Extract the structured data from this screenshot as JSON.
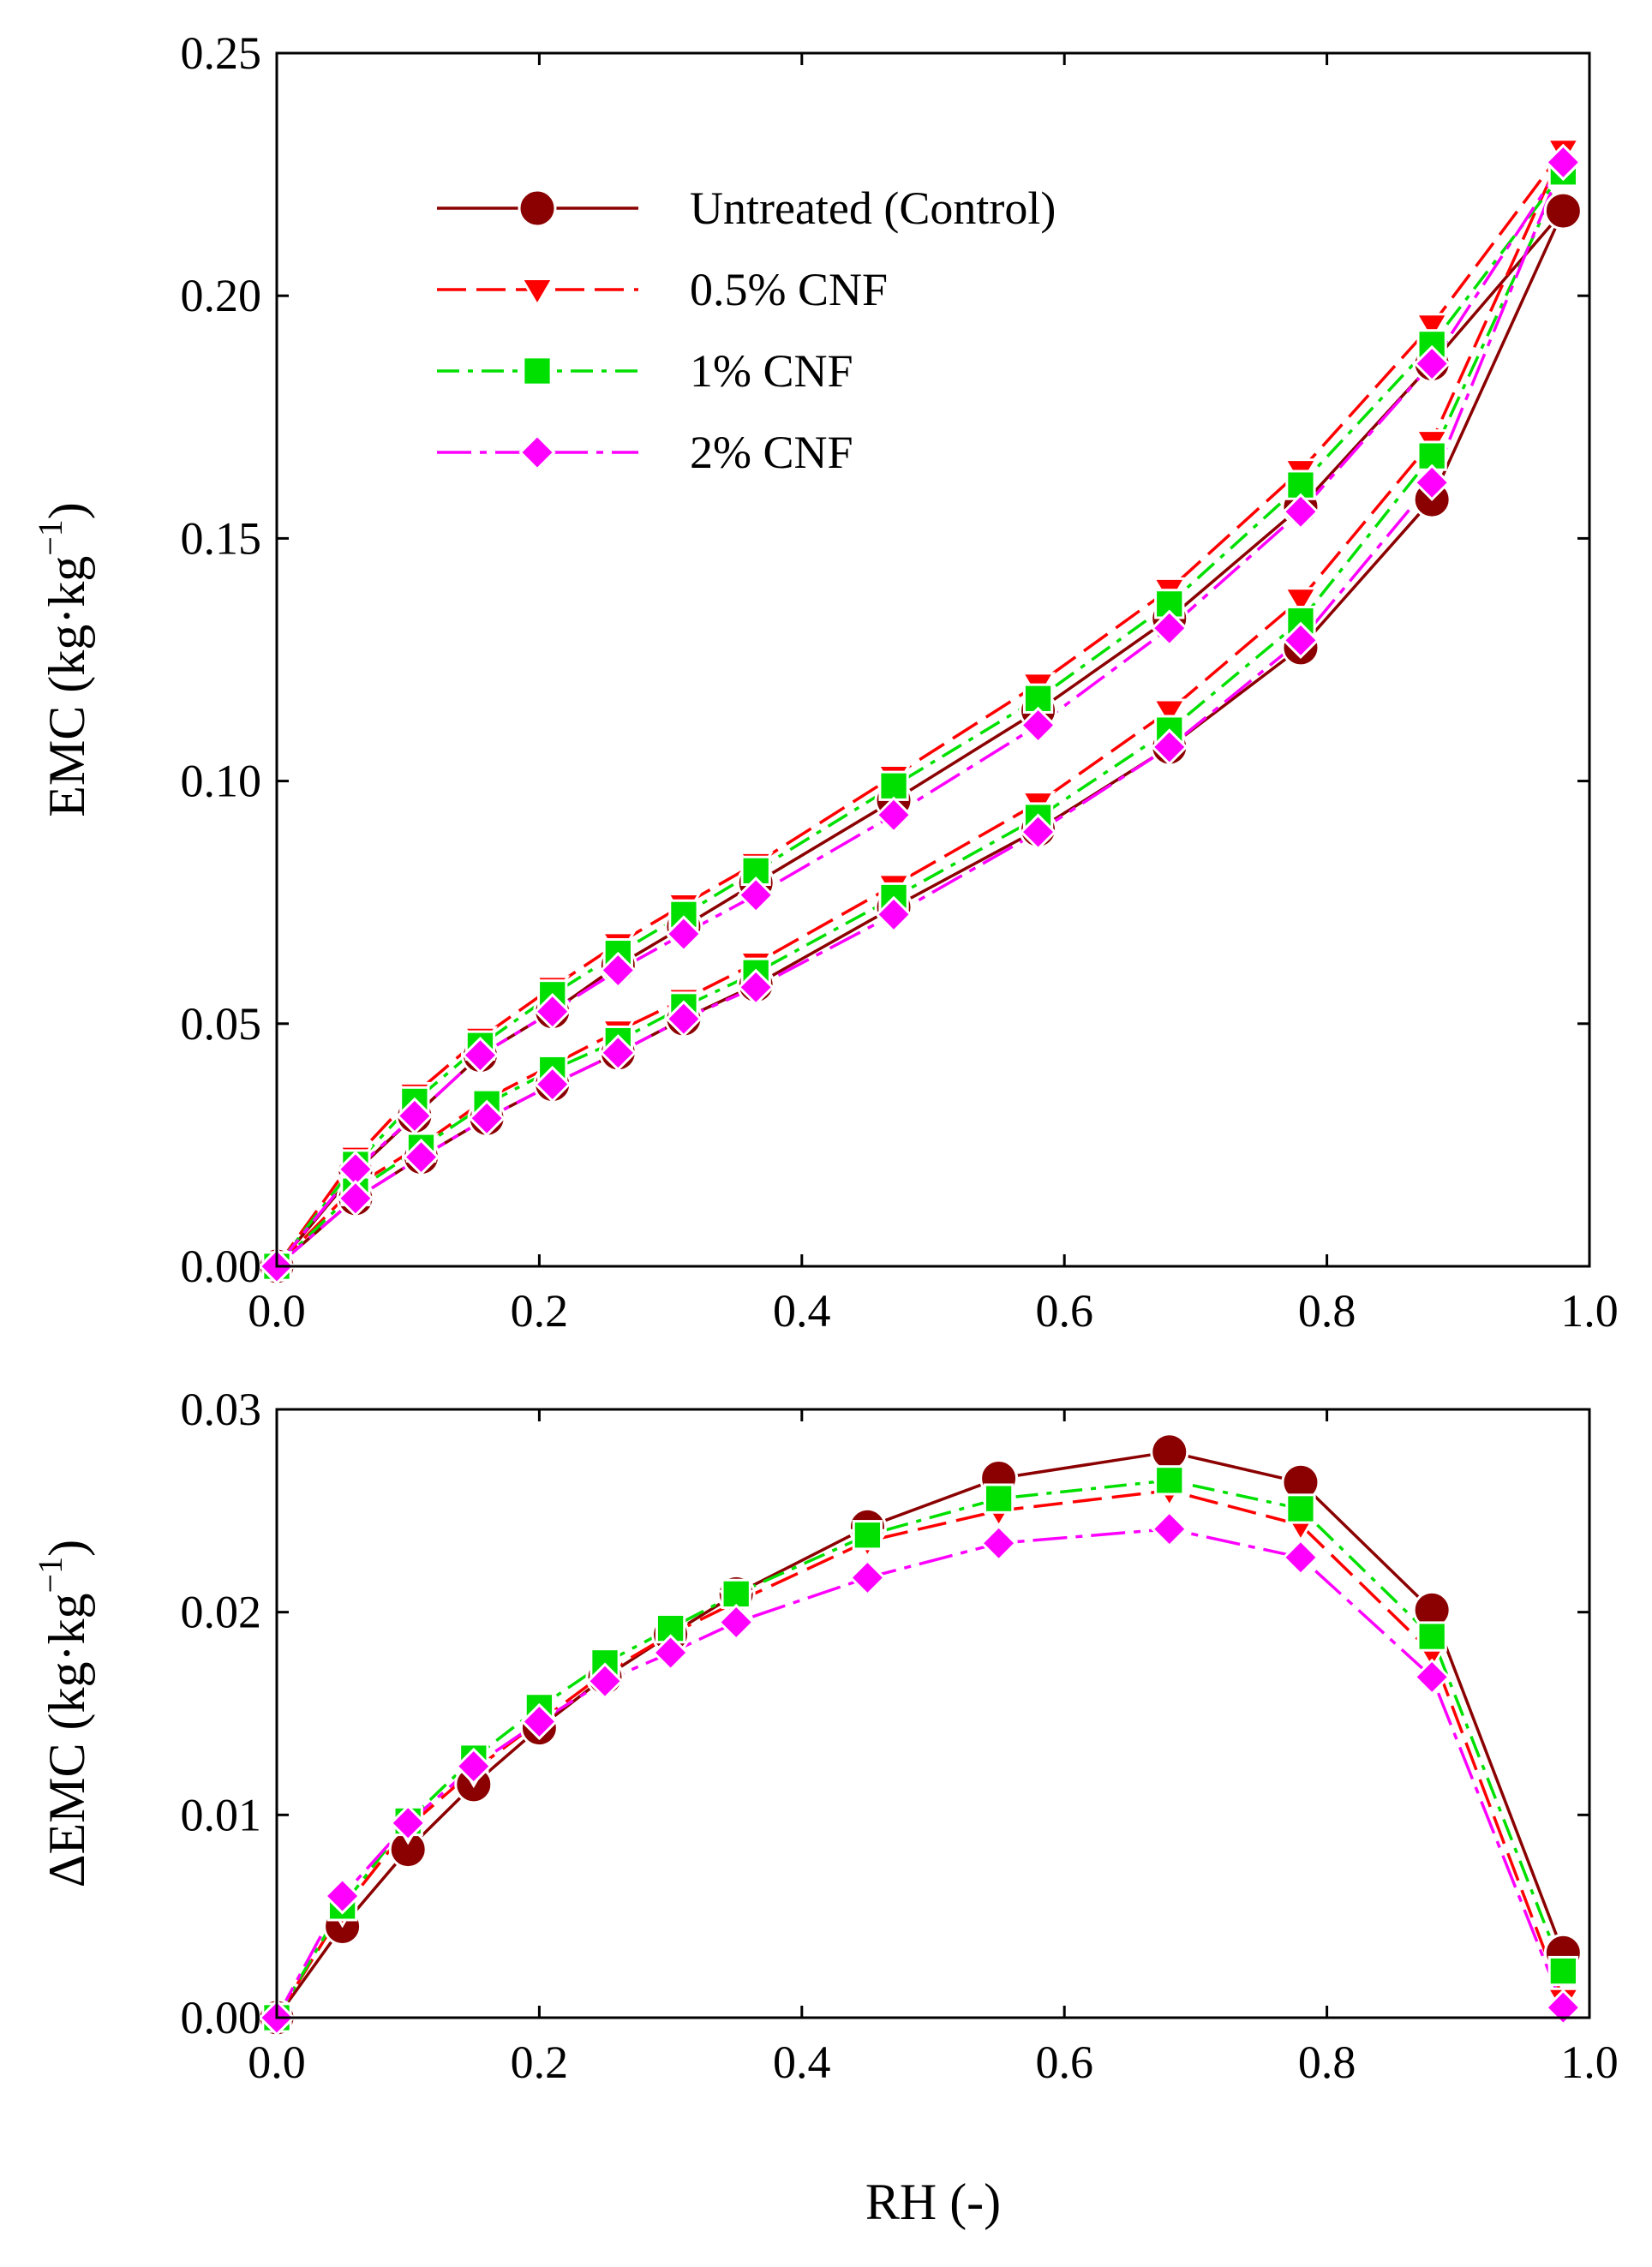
{
  "chart_data": [
    {
      "type": "line",
      "panel": "top",
      "xlabel": "",
      "ylabel": "EMC  (kg·kg",
      "ylabel_sup": "−1",
      "ylabel_close": ")",
      "xlim": [
        0,
        1
      ],
      "ylim": [
        0,
        0.25
      ],
      "xticks": [
        "0.0",
        "0.2",
        "0.4",
        "0.6",
        "0.8",
        "1.0"
      ],
      "yticks": [
        "0.00",
        "0.05",
        "0.10",
        "0.15",
        "0.20",
        "0.25"
      ],
      "grid": false,
      "legend_position": "upper-left",
      "legend": [
        "Untreated (Control)",
        "0.5% CNF",
        "1% CNF",
        "2% CNF"
      ],
      "series": [
        {
          "name": "Untreated (Control)",
          "branch": "desorption",
          "color": "#8b0000",
          "marker": "circle",
          "dash": "solid",
          "x": [
            0,
            0.06,
            0.105,
            0.155,
            0.21,
            0.26,
            0.31,
            0.365,
            0.47,
            0.58,
            0.68,
            0.78,
            0.88,
            0.98
          ],
          "y": [
            0,
            0.0195,
            0.031,
            0.0435,
            0.0525,
            0.062,
            0.07,
            0.079,
            0.096,
            0.1145,
            0.1335,
            0.1565,
            0.186,
            0.2175
          ]
        },
        {
          "name": "Untreated (Control)",
          "branch": "adsorption",
          "color": "#8b0000",
          "marker": "circle",
          "dash": "solid",
          "x": [
            0,
            0.06,
            0.11,
            0.16,
            0.21,
            0.26,
            0.31,
            0.365,
            0.47,
            0.58,
            0.68,
            0.78,
            0.88,
            0.98
          ],
          "y": [
            0,
            0.014,
            0.0225,
            0.0305,
            0.0375,
            0.044,
            0.051,
            0.058,
            0.074,
            0.09,
            0.107,
            0.1275,
            0.158,
            0.2175
          ]
        },
        {
          "name": "0.5% CNF",
          "branch": "desorption",
          "color": "#ff0000",
          "marker": "triangle-down",
          "dash": "long-dash",
          "x": [
            0,
            0.06,
            0.105,
            0.155,
            0.21,
            0.26,
            0.31,
            0.365,
            0.47,
            0.58,
            0.68,
            0.78,
            0.88,
            0.98
          ],
          "y": [
            0,
            0.0225,
            0.0355,
            0.047,
            0.0575,
            0.0665,
            0.0745,
            0.083,
            0.101,
            0.12,
            0.1395,
            0.164,
            0.194,
            0.23
          ]
        },
        {
          "name": "0.5% CNF",
          "branch": "adsorption",
          "color": "#ff0000",
          "marker": "triangle-down",
          "dash": "long-dash",
          "x": [
            0,
            0.06,
            0.11,
            0.16,
            0.21,
            0.26,
            0.31,
            0.365,
            0.47,
            0.58,
            0.68,
            0.78,
            0.88,
            0.98
          ],
          "y": [
            0,
            0.0165,
            0.025,
            0.0345,
            0.0415,
            0.0485,
            0.055,
            0.0625,
            0.0785,
            0.0955,
            0.1145,
            0.1375,
            0.17,
            0.23
          ]
        },
        {
          "name": "1% CNF",
          "branch": "desorption",
          "color": "#00e000",
          "marker": "square",
          "dash": "dash-dot",
          "x": [
            0,
            0.06,
            0.105,
            0.155,
            0.21,
            0.26,
            0.31,
            0.365,
            0.47,
            0.58,
            0.68,
            0.78,
            0.88,
            0.98
          ],
          "y": [
            0,
            0.021,
            0.034,
            0.0455,
            0.056,
            0.0645,
            0.0725,
            0.0815,
            0.099,
            0.117,
            0.1365,
            0.161,
            0.19,
            0.2255
          ]
        },
        {
          "name": "1% CNF",
          "branch": "adsorption",
          "color": "#00e000",
          "marker": "square",
          "dash": "dash-dot",
          "x": [
            0,
            0.06,
            0.11,
            0.16,
            0.21,
            0.26,
            0.31,
            0.365,
            0.47,
            0.58,
            0.68,
            0.78,
            0.88,
            0.98
          ],
          "y": [
            0,
            0.0155,
            0.0245,
            0.0335,
            0.0405,
            0.0465,
            0.0535,
            0.0605,
            0.076,
            0.0925,
            0.1105,
            0.133,
            0.167,
            0.2255
          ]
        },
        {
          "name": "2% CNF",
          "branch": "desorption",
          "color": "#ff00ff",
          "marker": "diamond",
          "dash": "long-dash-dot",
          "x": [
            0,
            0.06,
            0.105,
            0.155,
            0.21,
            0.26,
            0.31,
            0.365,
            0.47,
            0.58,
            0.68,
            0.78,
            0.88,
            0.98
          ],
          "y": [
            0,
            0.02,
            0.031,
            0.0435,
            0.0525,
            0.061,
            0.0685,
            0.0765,
            0.093,
            0.1115,
            0.1315,
            0.1555,
            0.186,
            0.2275
          ]
        },
        {
          "name": "2% CNF",
          "branch": "adsorption",
          "color": "#ff00ff",
          "marker": "diamond",
          "dash": "long-dash-dot",
          "x": [
            0,
            0.06,
            0.11,
            0.16,
            0.21,
            0.26,
            0.31,
            0.365,
            0.47,
            0.58,
            0.68,
            0.78,
            0.88,
            0.98
          ],
          "y": [
            0,
            0.014,
            0.0225,
            0.0305,
            0.0375,
            0.044,
            0.051,
            0.0575,
            0.0725,
            0.0895,
            0.107,
            0.129,
            0.1615,
            0.2275
          ]
        }
      ]
    },
    {
      "type": "line",
      "panel": "bottom",
      "xlabel": "RH (-)",
      "ylabel": "ΔEMC  (kg·kg",
      "ylabel_sup": "−1",
      "ylabel_close": ")",
      "xlim": [
        0,
        1
      ],
      "ylim": [
        0,
        0.03
      ],
      "xticks": [
        "0.0",
        "0.2",
        "0.4",
        "0.6",
        "0.8",
        "1.0"
      ],
      "yticks": [
        "0.00",
        "0.01",
        "0.02",
        "0.03"
      ],
      "grid": false,
      "series": [
        {
          "name": "Untreated (Control)",
          "color": "#8b0000",
          "marker": "circle",
          "dash": "solid",
          "x": [
            0,
            0.05,
            0.1,
            0.15,
            0.2,
            0.25,
            0.3,
            0.35,
            0.45,
            0.55,
            0.68,
            0.78,
            0.88,
            0.98
          ],
          "y": [
            0,
            0.0045,
            0.0083,
            0.0115,
            0.0143,
            0.0168,
            0.0189,
            0.0209,
            0.0242,
            0.0266,
            0.0279,
            0.0264,
            0.0201,
            0.0032
          ]
        },
        {
          "name": "0.5% CNF",
          "color": "#ff0000",
          "marker": "triangle-down",
          "dash": "long-dash",
          "x": [
            0,
            0.05,
            0.1,
            0.15,
            0.2,
            0.25,
            0.3,
            0.35,
            0.45,
            0.55,
            0.68,
            0.78,
            0.88,
            0.98
          ],
          "y": [
            0,
            0.0053,
            0.0094,
            0.0122,
            0.0146,
            0.017,
            0.0189,
            0.0205,
            0.0235,
            0.025,
            0.026,
            0.0243,
            0.018,
            0.0009
          ]
        },
        {
          "name": "1% CNF",
          "color": "#00e000",
          "marker": "square",
          "dash": "dash-dot",
          "x": [
            0,
            0.05,
            0.1,
            0.15,
            0.2,
            0.25,
            0.3,
            0.35,
            0.45,
            0.55,
            0.68,
            0.78,
            0.88,
            0.98
          ],
          "y": [
            0,
            0.0055,
            0.0097,
            0.0128,
            0.0153,
            0.0175,
            0.0192,
            0.0209,
            0.0238,
            0.0256,
            0.0265,
            0.0251,
            0.0188,
            0.0023
          ]
        },
        {
          "name": "2% CNF",
          "color": "#ff00ff",
          "marker": "diamond",
          "dash": "long-dash-dot",
          "x": [
            0,
            0.05,
            0.1,
            0.15,
            0.2,
            0.25,
            0.3,
            0.35,
            0.45,
            0.55,
            0.68,
            0.78,
            0.88,
            0.98
          ],
          "y": [
            0,
            0.006,
            0.0096,
            0.0124,
            0.0146,
            0.0166,
            0.018,
            0.0195,
            0.0217,
            0.0234,
            0.0241,
            0.0227,
            0.0168,
            0.0005
          ]
        }
      ]
    }
  ]
}
